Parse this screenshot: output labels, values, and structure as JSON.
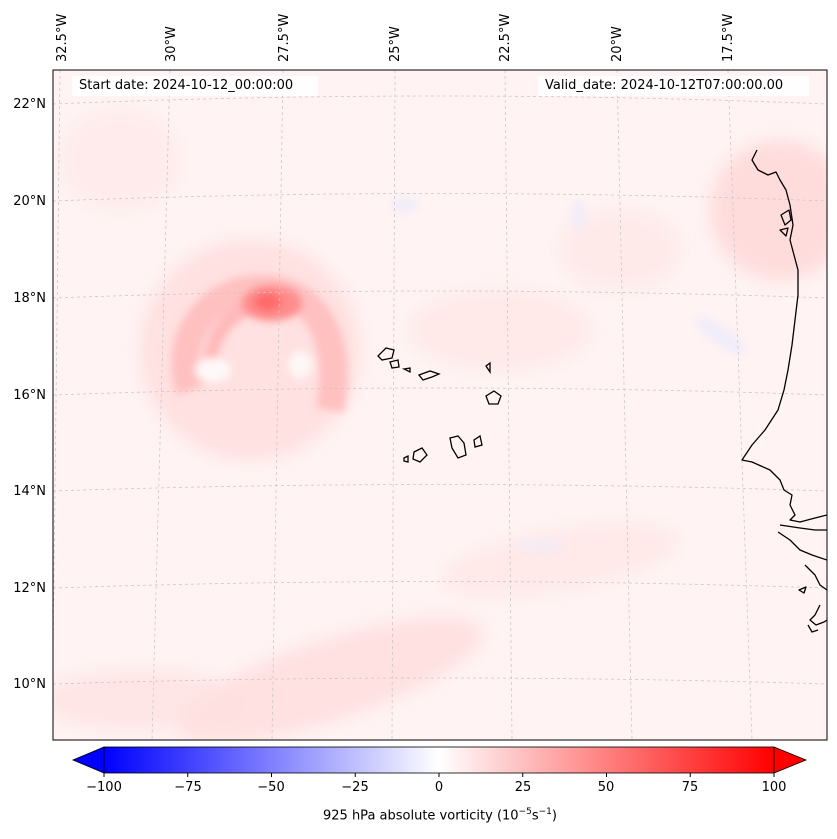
{
  "map": {
    "start_date": "Start date: 2024-10-12_00:00:00",
    "valid_date": "Valid_date: 2024-10-12T07:00:00.00",
    "lon_labels": [
      "32.5°W",
      "30°W",
      "27.5°W",
      "25°W",
      "22.5°W",
      "20°W",
      "17.5°W"
    ],
    "lat_labels": [
      "22°N",
      "20°N",
      "18°N",
      "16°N",
      "14°N",
      "12°N",
      "10°N"
    ],
    "field": "925 hPa absolute vorticity",
    "colors": {
      "negative": "#0000ff",
      "zero": "#ffffff",
      "positive": "#ff0000",
      "coast": "#000000",
      "grid": "#c8c8c8"
    }
  },
  "colorbar": {
    "label_text": "925 hPa absolute vorticity (10",
    "label_exp1": "−5",
    "label_mid": "s",
    "label_exp2": "−1",
    "label_end": ")",
    "min": -100,
    "max": 100,
    "ticks": [
      "−100",
      "−75",
      "−50",
      "−25",
      "0",
      "25",
      "50",
      "75",
      "100"
    ]
  },
  "features": {
    "vortex_max": {
      "lon": -27.2,
      "lat": 18.0,
      "value": 55
    }
  }
}
